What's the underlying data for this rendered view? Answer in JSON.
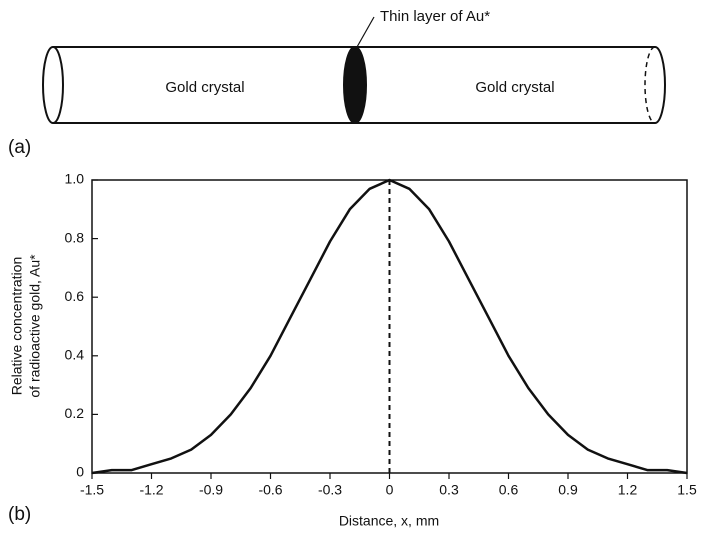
{
  "diagram": {
    "panel_label": "(a)",
    "left_label": "Gold crystal",
    "right_label": "Gold crystal",
    "layer_label": "Thin layer of Au*"
  },
  "chart_data": {
    "type": "line",
    "panel_label": "(b)",
    "xlabel": "Distance, x, mm",
    "ylabel": [
      "Relative concentration",
      "of radioactive gold, Au*"
    ],
    "x": [
      -1.5,
      -1.4,
      -1.3,
      -1.2,
      -1.1,
      -1.0,
      -0.9,
      -0.8,
      -0.7,
      -0.6,
      -0.5,
      -0.4,
      -0.3,
      -0.2,
      -0.1,
      0,
      0.1,
      0.2,
      0.3,
      0.4,
      0.5,
      0.6,
      0.7,
      0.8,
      0.9,
      1.0,
      1.1,
      1.2,
      1.3,
      1.4,
      1.5
    ],
    "values": [
      0,
      0.01,
      0.01,
      0.03,
      0.05,
      0.08,
      0.13,
      0.2,
      0.29,
      0.4,
      0.53,
      0.66,
      0.79,
      0.9,
      0.97,
      1,
      0.97,
      0.9,
      0.79,
      0.66,
      0.53,
      0.4,
      0.29,
      0.2,
      0.13,
      0.08,
      0.05,
      0.03,
      0.01,
      0.01,
      0
    ],
    "color": "#111111",
    "xlim": [
      -1.5,
      1.5
    ],
    "xticks": [
      -1.5,
      -1.2,
      -0.9,
      -0.6,
      -0.3,
      0,
      0.3,
      0.6,
      0.9,
      1.2,
      1.5
    ],
    "ylim": [
      0,
      1
    ],
    "yticks": [
      0,
      0.2,
      0.4,
      0.6,
      0.8,
      {
        "value": 1,
        "label": "1.0"
      }
    ],
    "vline": 0
  }
}
